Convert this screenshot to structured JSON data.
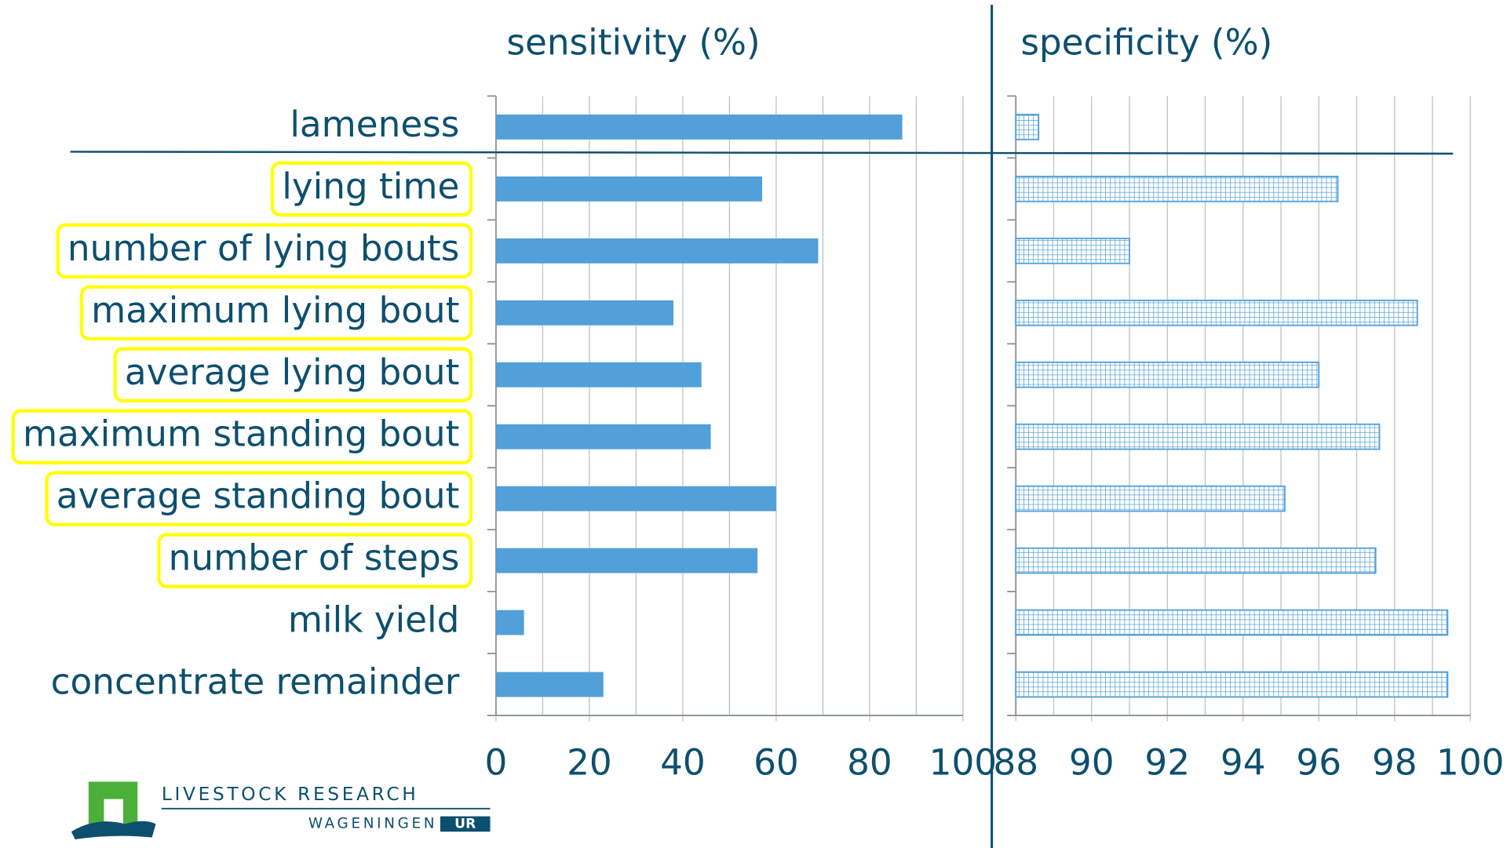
{
  "chart_data": [
    {
      "type": "bar",
      "orientation": "horizontal",
      "title": "sensitivity (%)",
      "categories": [
        "lameness",
        "lying time",
        "number of lying bouts",
        "maximum lying bout",
        "average lying bout",
        "maximum standing bout",
        "average standing bout",
        "number of steps",
        "milk yield",
        "concentrate remainder"
      ],
      "highlighted": [
        false,
        true,
        true,
        true,
        true,
        true,
        true,
        true,
        false,
        false
      ],
      "highlight_color": "#ffff00",
      "values": [
        87,
        57,
        69,
        38,
        44,
        46,
        60,
        56,
        6,
        23
      ],
      "color": "#52a0da",
      "fill": "solid",
      "xlim": [
        0,
        100
      ],
      "xticks": [
        0,
        20,
        40,
        60,
        80,
        100
      ],
      "xminor": [
        10,
        30,
        50,
        70,
        90
      ],
      "grid": true
    },
    {
      "type": "bar",
      "orientation": "horizontal",
      "title": "specificity (%)",
      "values": [
        88.6,
        96.5,
        91.0,
        98.6,
        96.0,
        97.6,
        95.1,
        97.5,
        99.4,
        99.4
      ],
      "color": "#52a0da",
      "fill": "grid-pattern",
      "xlim": [
        88,
        100
      ],
      "xticks": [
        88,
        90,
        92,
        94,
        96,
        98,
        100
      ],
      "xminor": [
        89,
        91,
        93,
        95,
        97,
        99
      ],
      "grid": true
    }
  ],
  "logo": {
    "line1": "LIVESTOCK RESEARCH",
    "line2": "WAGENINGEN",
    "line3": "UR"
  }
}
